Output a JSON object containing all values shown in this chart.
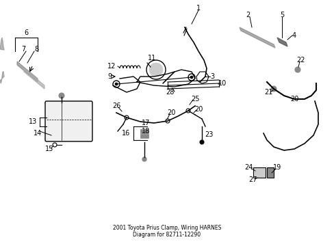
{
  "title": "2001 Toyota Prius Clamp, Wiring HARNES\nDiagram for 82711-12290",
  "background_color": "#ffffff",
  "line_color": "#000000",
  "text_color": "#000000",
  "figsize": [
    4.89,
    3.6
  ],
  "dpi": 100
}
